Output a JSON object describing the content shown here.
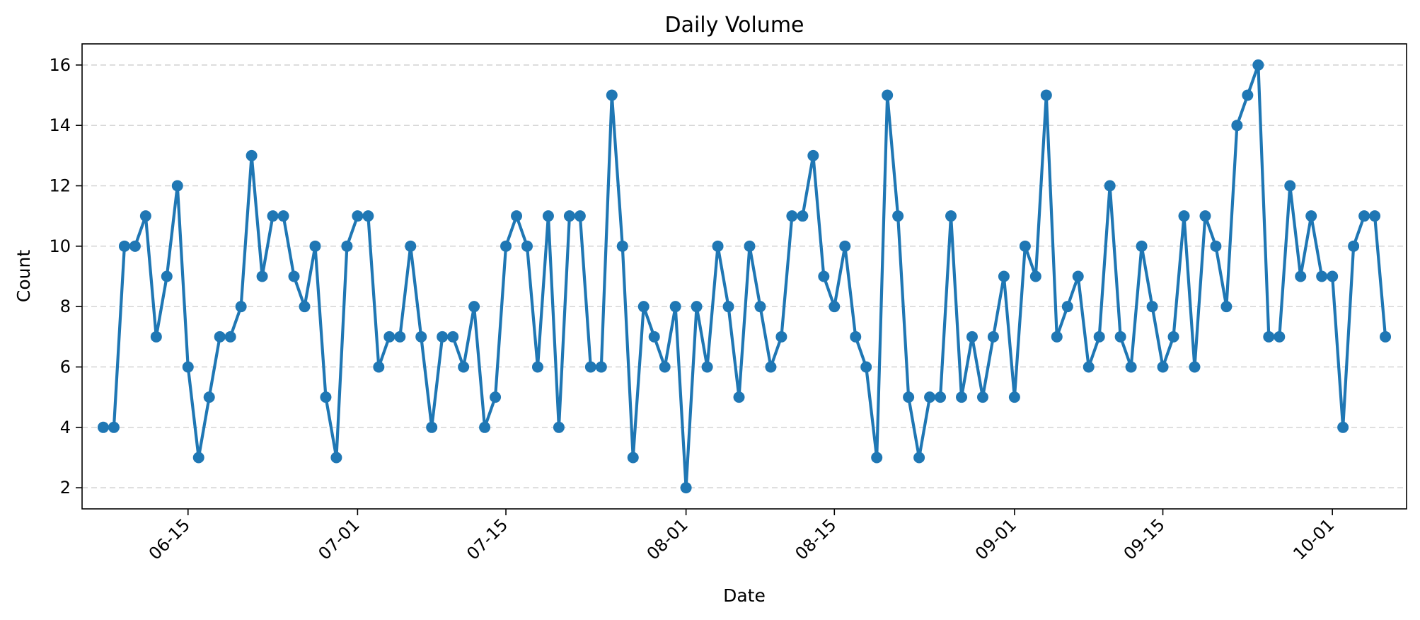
{
  "chart_data": {
    "type": "line",
    "title": "Daily Volume",
    "xlabel": "Date",
    "ylabel": "Count",
    "start_date": "2024-06-07",
    "xlim": [
      "2024-06-05",
      "2024-10-08"
    ],
    "ylim": [
      1.3,
      16.7
    ],
    "x_ticks": [
      "06-15",
      "07-01",
      "07-15",
      "08-01",
      "08-15",
      "09-01",
      "09-15",
      "10-01"
    ],
    "x_tick_dates": [
      "2024-06-15",
      "2024-07-01",
      "2024-07-15",
      "2024-08-01",
      "2024-08-15",
      "2024-09-01",
      "2024-09-15",
      "2024-10-01"
    ],
    "y_ticks": [
      2,
      4,
      6,
      8,
      10,
      12,
      14,
      16
    ],
    "grid": "y-dashed",
    "series": [
      {
        "color": "#1f77b4",
        "values": [
          4,
          4,
          10,
          10,
          11,
          7,
          9,
          12,
          6,
          3,
          5,
          7,
          7,
          8,
          13,
          9,
          11,
          11,
          9,
          8,
          10,
          5,
          3,
          10,
          11,
          11,
          6,
          7,
          7,
          10,
          7,
          4,
          7,
          7,
          6,
          8,
          4,
          5,
          10,
          11,
          10,
          6,
          11,
          4,
          11,
          11,
          6,
          6,
          15,
          10,
          3,
          8,
          7,
          6,
          8,
          2,
          8,
          6,
          10,
          8,
          5,
          10,
          8,
          6,
          7,
          11,
          11,
          13,
          9,
          8,
          10,
          7,
          6,
          3,
          15,
          11,
          5,
          3,
          5,
          5,
          11,
          5,
          7,
          5,
          7,
          9,
          5,
          10,
          9,
          15,
          7,
          8,
          9,
          6,
          7,
          12,
          7,
          6,
          10,
          8,
          6,
          7,
          11,
          6,
          11,
          10,
          8,
          14,
          15,
          16,
          7,
          7,
          12,
          9,
          11,
          9,
          9,
          4,
          10,
          11,
          11,
          7
        ]
      }
    ]
  }
}
